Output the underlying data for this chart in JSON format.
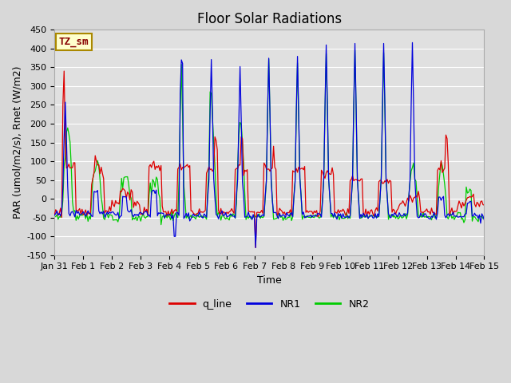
{
  "title": "Floor Solar Radiations",
  "xlabel": "Time",
  "ylabel": "PAR (umol/m2/s), Rnet (W/m2)",
  "ylim": [
    -150,
    450
  ],
  "yticks": [
    -150,
    -100,
    -50,
    0,
    50,
    100,
    150,
    200,
    250,
    300,
    350,
    400,
    450
  ],
  "xtick_labels": [
    "Jan 31",
    "Feb 1",
    "Feb 2",
    "Feb 3",
    "Feb 4",
    "Feb 5",
    "Feb 6",
    "Feb 7",
    "Feb 8",
    "Feb 9",
    "Feb 10",
    "Feb 11",
    "Feb 12",
    "Feb 13",
    "Feb 14",
    "Feb 15"
  ],
  "legend_entries": [
    "q_line",
    "NR1",
    "NR2"
  ],
  "line_colors": {
    "q_line": "#dd0000",
    "NR1": "#0000dd",
    "NR2": "#00cc00"
  },
  "annotation_text": "TZ_sm",
  "annotation_color": "#880000",
  "annotation_bg": "#ffffcc",
  "annotation_edge": "#aa8800",
  "bg_color": "#d8d8d8",
  "plot_bg": "#e0e0e0",
  "grid_color": "#ffffff",
  "title_fontsize": 12,
  "axis_fontsize": 9,
  "tick_fontsize": 8,
  "legend_fontsize": 9
}
